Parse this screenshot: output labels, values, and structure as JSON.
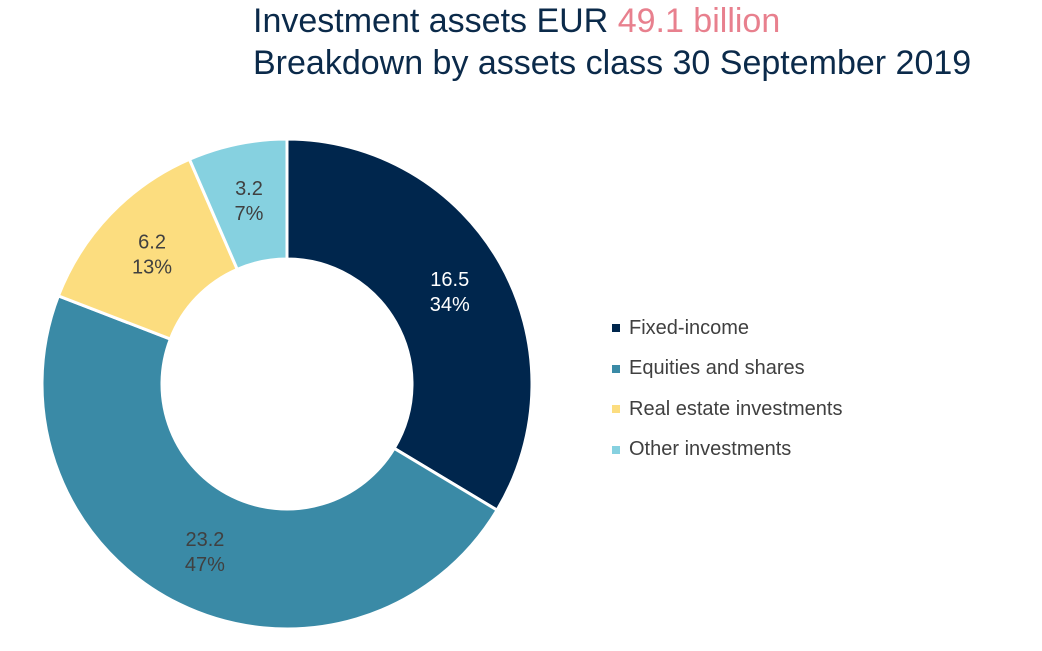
{
  "header": {
    "title_prefix": "Investment assets EUR ",
    "title_highlight": "49.1 billion",
    "subtitle": "Breakdown by assets class 30 September 2019"
  },
  "colors": {
    "title": "#0b2a4a",
    "highlight": "#e8808e"
  },
  "chart_data": {
    "type": "pie",
    "variant": "donut",
    "start_angle_deg": 0,
    "direction": "clockwise",
    "legend_position": "right",
    "slices": [
      {
        "name": "Fixed-income",
        "value": 16.5,
        "value_label": "16.5",
        "percent_label": "34%",
        "color": "#00264d",
        "label_color": "#ffffff"
      },
      {
        "name": "Equities and shares",
        "value": 23.2,
        "value_label": "23.2",
        "percent_label": "47%",
        "color": "#3a8aa6",
        "label_color": "#404040"
      },
      {
        "name": "Real estate investments",
        "value": 6.2,
        "value_label": "6.2",
        "percent_label": "13%",
        "color": "#fcdd7f",
        "label_color": "#404040"
      },
      {
        "name": "Other investments",
        "value": 3.2,
        "value_label": "3.2",
        "percent_label": "7%",
        "color": "#86d1e0",
        "label_color": "#404040"
      }
    ]
  }
}
